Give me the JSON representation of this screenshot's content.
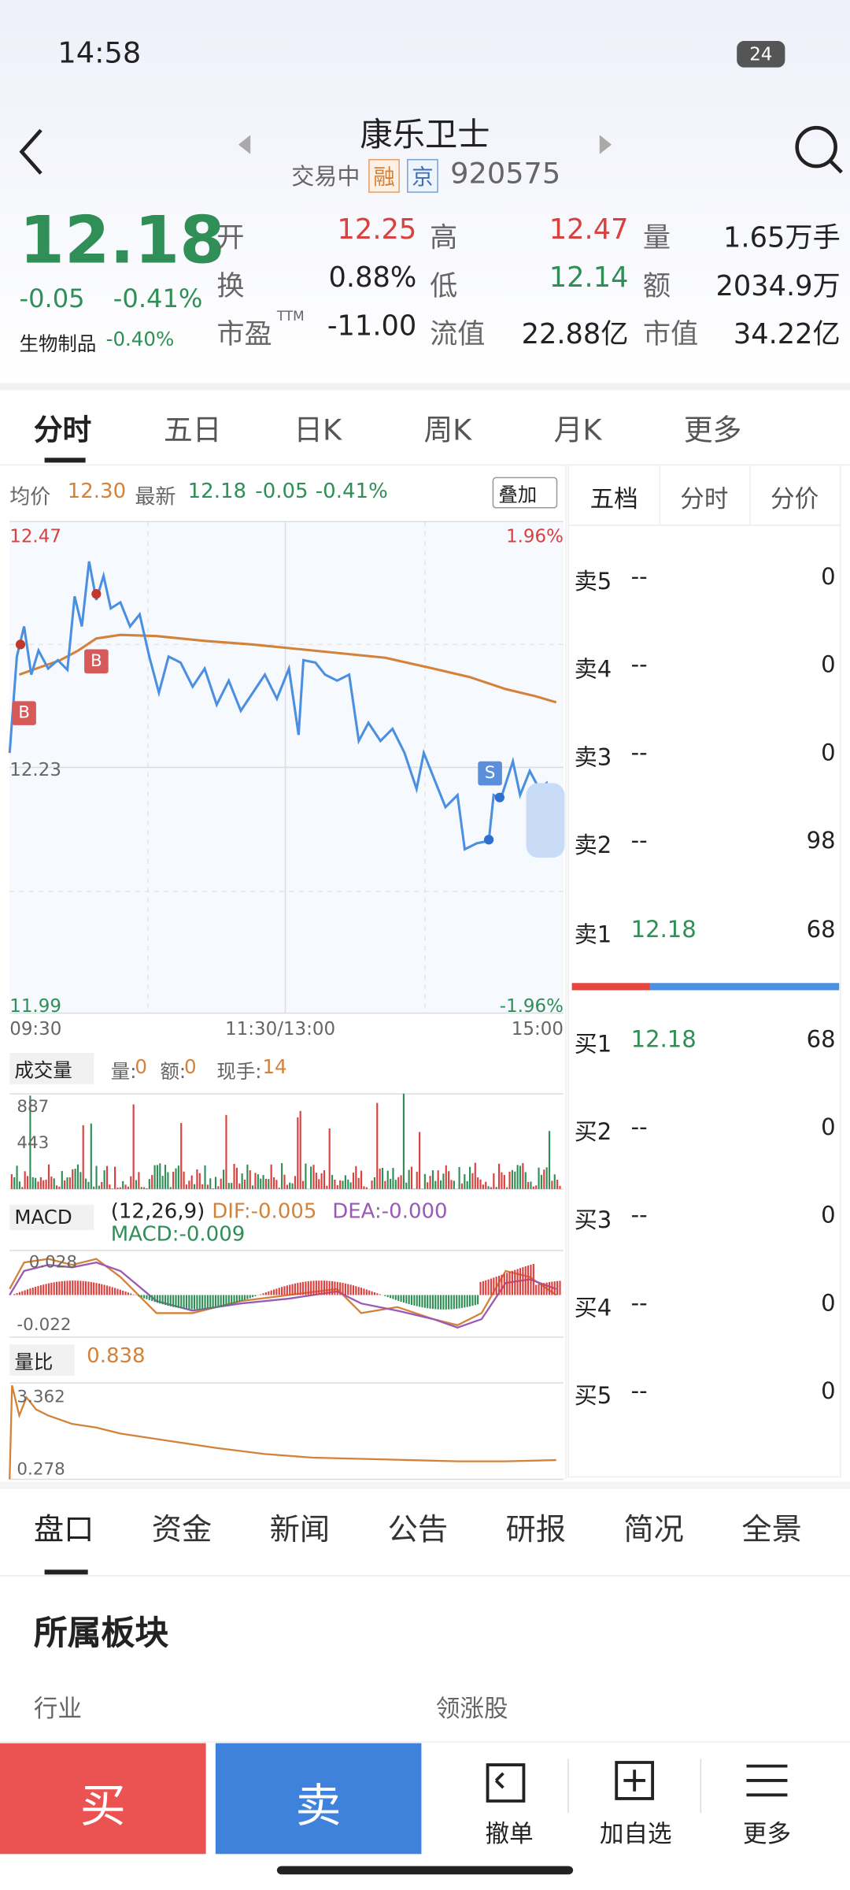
{
  "status_bar": {
    "time": "14:58",
    "battery": "24"
  },
  "header": {
    "title": "康乐卫士",
    "status": "交易中",
    "tags": [
      "融",
      "京"
    ],
    "code": "920575"
  },
  "quote": {
    "price": "12.18",
    "change": "-0.05",
    "change_pct": "-0.41%",
    "sector": "生物制品",
    "sector_change": "-0.40%",
    "stats": [
      [
        {
          "label": "开",
          "value": "12.25"
        },
        {
          "label": "高",
          "value": "12.47"
        },
        {
          "label": "量",
          "value": "1.65万手"
        }
      ],
      [
        {
          "label": "换",
          "value": "0.88%"
        },
        {
          "label": "低",
          "value": "12.14"
        },
        {
          "label": "额",
          "value": "2034.9万"
        }
      ],
      [
        {
          "label": "市盈",
          "label_sup": "TTM",
          "value": "-11.00"
        },
        {
          "label": "流值",
          "value": "22.88亿"
        },
        {
          "label": "市值",
          "value": "34.22亿"
        }
      ]
    ]
  },
  "tabs": [
    "分时",
    "五日",
    "日K",
    "周K",
    "月K",
    "更多"
  ],
  "chart": {
    "legend": {
      "avg_label": "均价",
      "avg": "12.30",
      "last_label": "最新",
      "last": "12.18",
      "change": "-0.05",
      "change_pct": "-0.41%"
    },
    "overlay_button": "叠加",
    "y_labels": {
      "high": "12.47",
      "mid": "12.23",
      "low": "11.99",
      "high_pct": "1.96%",
      "low_pct": "-1.96%"
    },
    "x_labels": [
      "09:30",
      "11:30/13:00",
      "15:00"
    ],
    "markers": [
      "B",
      "B",
      "S"
    ],
    "volume": {
      "name": "成交量",
      "items": [
        {
          "label": "量:",
          "value": "0"
        },
        {
          "label": "额:",
          "value": "0"
        },
        {
          "label": "现手:",
          "value": "14"
        }
      ],
      "y_labels": [
        "887",
        "443"
      ]
    },
    "macd": {
      "name": "MACD",
      "params": "(12,26,9)",
      "dif": "DIF:-0.005",
      "dea": "DEA:-0.000",
      "macd": "MACD:-0.009",
      "y_labels": [
        "0.028",
        "-0.022"
      ]
    },
    "ratio": {
      "name": "量比",
      "value": "0.838",
      "y_labels": [
        "3.362",
        "0.278"
      ]
    }
  },
  "order_book": {
    "tabs": [
      "五档",
      "分时",
      "分价"
    ],
    "asks": [
      {
        "label": "卖5",
        "price": "--",
        "volume": "0"
      },
      {
        "label": "卖4",
        "price": "--",
        "volume": "0"
      },
      {
        "label": "卖3",
        "price": "--",
        "volume": "0"
      },
      {
        "label": "卖2",
        "price": "--",
        "volume": "98"
      },
      {
        "label": "卖1",
        "price": "12.18",
        "volume": "68"
      }
    ],
    "bids": [
      {
        "label": "买1",
        "price": "12.18",
        "volume": "68"
      },
      {
        "label": "买2",
        "price": "--",
        "volume": "0"
      },
      {
        "label": "买3",
        "price": "--",
        "volume": "0"
      },
      {
        "label": "买4",
        "price": "--",
        "volume": "0"
      },
      {
        "label": "买5",
        "price": "--",
        "volume": "0"
      }
    ]
  },
  "bottom_tabs": [
    "盘口",
    "资金",
    "新闻",
    "公告",
    "研报",
    "简况",
    "全景"
  ],
  "section": {
    "title": "所属板块",
    "col1": "行业",
    "col2": "领涨股"
  },
  "actions": {
    "buy": "买",
    "sell": "卖",
    "items": [
      "撤单",
      "加自选",
      "更多"
    ]
  }
}
